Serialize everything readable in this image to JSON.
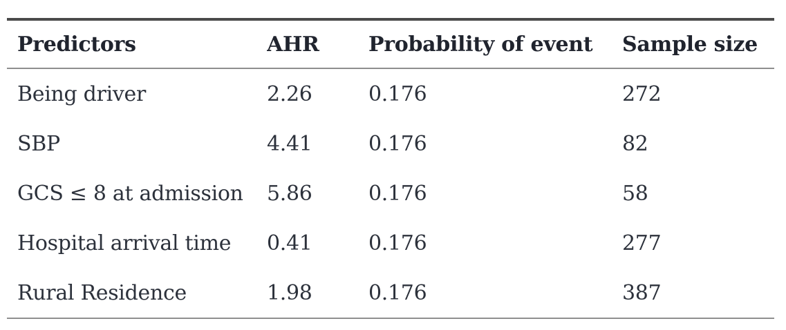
{
  "table": {
    "columns": [
      "Predictors",
      "AHR",
      "Probability of event",
      "Sample size"
    ],
    "rows": [
      [
        "Being driver",
        "2.26",
        "0.176",
        "272"
      ],
      [
        "SBP",
        "4.41",
        "0.176",
        "82"
      ],
      [
        "GCS ≤ 8 at admission",
        "5.86",
        "0.176",
        "58"
      ],
      [
        "Hospital arrival time",
        "0.41",
        "0.176",
        "277"
      ],
      [
        "Rural Residence",
        "1.98",
        "0.176",
        "387"
      ]
    ],
    "colors": {
      "header_text": "#20242e",
      "body_text": "#2c313b",
      "rule_heavy": "#4a4a4a",
      "rule_light": "#8e8e8e",
      "background": "#ffffff"
    }
  }
}
